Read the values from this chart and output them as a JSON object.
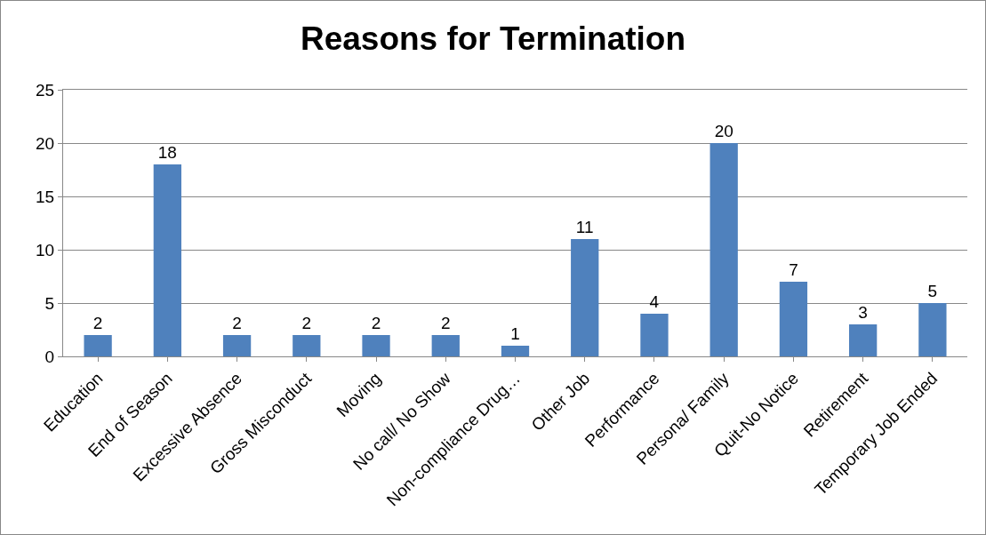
{
  "chart_data": {
    "type": "bar",
    "title": "Reasons for Termination",
    "categories": [
      "Education",
      "End of Season",
      "Excessive Absence",
      "Gross Misconduct",
      "Moving",
      "No call/ No Show",
      "Non-compliance Drug…",
      "Other Job",
      "Performance",
      "Persona/ Family",
      "Quit-No Notice",
      "Retirement",
      "Temporary Job Ended"
    ],
    "values": [
      2,
      18,
      2,
      2,
      2,
      2,
      1,
      11,
      4,
      20,
      7,
      3,
      5
    ],
    "color": "#4f81bd",
    "ylim": [
      0,
      25
    ],
    "yticks": [
      0,
      5,
      10,
      15,
      20,
      25
    ],
    "grid": "y",
    "data_labels": true
  }
}
